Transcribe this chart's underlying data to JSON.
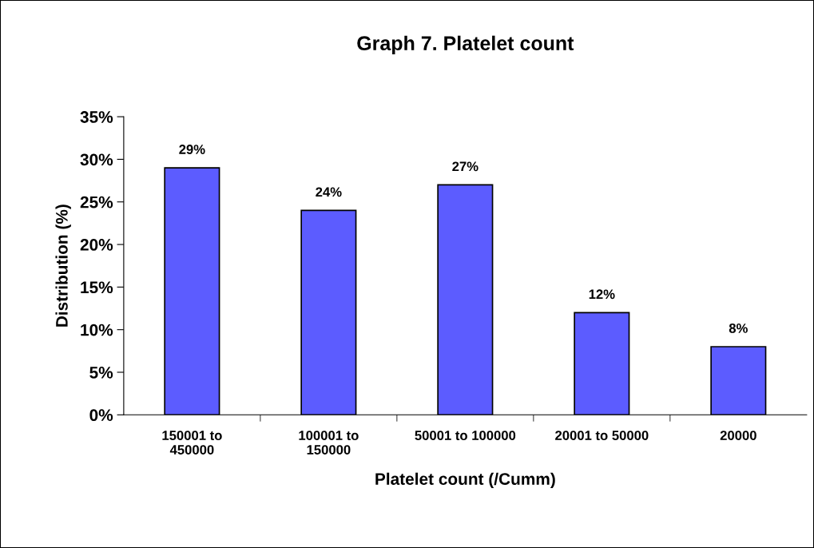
{
  "chart_data": {
    "type": "bar",
    "title": "Graph 7. Platelet count",
    "xlabel": "Platelet count (/Cumm)",
    "ylabel": "Distribution (%)",
    "categories": [
      "150001 to\n450000",
      "100001 to\n150000",
      "50001 to 100000",
      "20001 to 50000",
      "20000"
    ],
    "values": [
      29,
      24,
      27,
      12,
      8
    ],
    "value_labels": [
      "29%",
      "24%",
      "27%",
      "12%",
      "8%"
    ],
    "color": "#5c5cff",
    "ylim": [
      0,
      35
    ],
    "yticks": [
      {
        "value": 0,
        "label": "0%"
      },
      {
        "value": 5,
        "label": "5%"
      },
      {
        "value": 10,
        "label": "10%"
      },
      {
        "value": 15,
        "label": "15%"
      },
      {
        "value": 20,
        "label": "20%"
      },
      {
        "value": 25,
        "label": "25%"
      },
      {
        "value": 30,
        "label": "30%"
      },
      {
        "value": 35,
        "label": "35%"
      }
    ],
    "grid": false,
    "legend": false
  }
}
